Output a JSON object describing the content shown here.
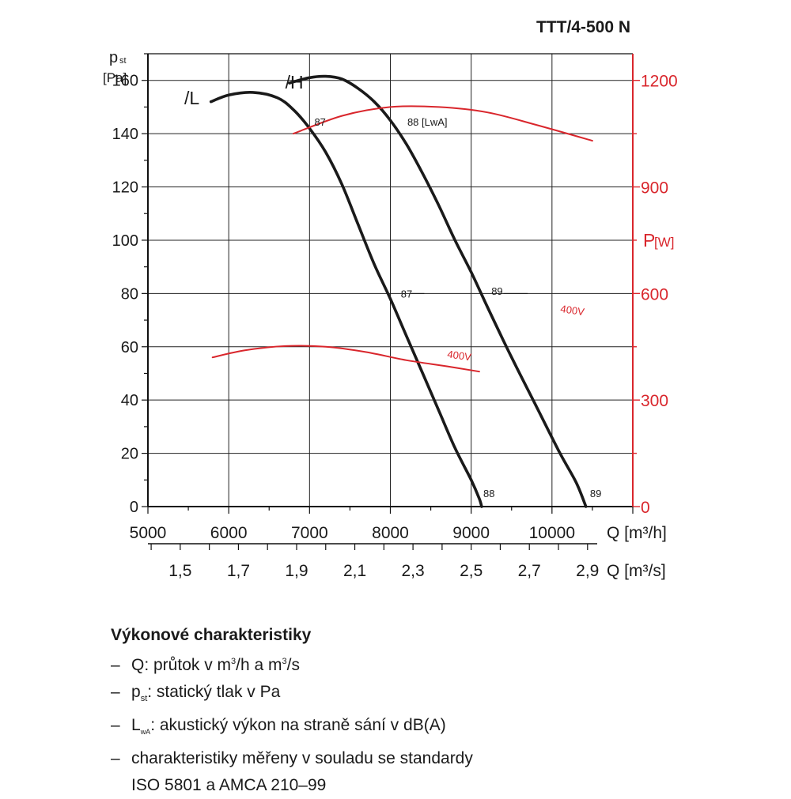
{
  "chart_data": {
    "type": "line",
    "title": "TTT/4-500 N",
    "y_left": {
      "label_main": "p",
      "label_sub": "st",
      "unit": "[Pa]",
      "range": [
        0,
        170
      ],
      "ticks": [
        0,
        20,
        40,
        60,
        80,
        100,
        120,
        140,
        160
      ]
    },
    "y_right": {
      "label_main": "P",
      "unit": "[W]",
      "range": [
        0,
        1275
      ],
      "ticks": [
        0,
        300,
        600,
        900,
        1200
      ],
      "color": "#d9262c"
    },
    "x_primary": {
      "unit_label": "Q [m³/h]",
      "range": [
        5000,
        11000
      ],
      "ticks": [
        5000,
        6000,
        7000,
        8000,
        9000,
        10000
      ]
    },
    "x_secondary": {
      "unit_label": "Q [m³/s]",
      "ticks": [
        "1,5",
        "1,7",
        "1,9",
        "2,1",
        "2,3",
        "2,5",
        "2,7",
        "2,9"
      ],
      "tick_values_m3s": [
        1.5,
        1.7,
        1.9,
        2.1,
        2.3,
        2.5,
        2.7,
        2.9
      ]
    },
    "grid": true,
    "series": [
      {
        "name": "/L",
        "axis": "left",
        "color": "#1a1a1a",
        "points": [
          [
            5780,
            152
          ],
          [
            6000,
            154.5
          ],
          [
            6300,
            155.5
          ],
          [
            6600,
            153.5
          ],
          [
            6800,
            149
          ],
          [
            7000,
            142
          ],
          [
            7200,
            133
          ],
          [
            7400,
            121
          ],
          [
            7600,
            106
          ],
          [
            7800,
            91
          ],
          [
            8000,
            78
          ],
          [
            8200,
            64
          ],
          [
            8400,
            50
          ],
          [
            8600,
            36
          ],
          [
            8800,
            22
          ],
          [
            9000,
            10
          ],
          [
            9100,
            3
          ],
          [
            9130,
            0
          ]
        ]
      },
      {
        "name": "/H",
        "axis": "left",
        "color": "#1a1a1a",
        "points": [
          [
            6750,
            159
          ],
          [
            7000,
            161
          ],
          [
            7200,
            161.5
          ],
          [
            7400,
            160.5
          ],
          [
            7600,
            157
          ],
          [
            7800,
            152
          ],
          [
            8000,
            145
          ],
          [
            8200,
            136
          ],
          [
            8400,
            125
          ],
          [
            8600,
            113
          ],
          [
            8800,
            100
          ],
          [
            9000,
            88
          ],
          [
            9200,
            75
          ],
          [
            9500,
            56
          ],
          [
            9800,
            38
          ],
          [
            10100,
            20
          ],
          [
            10300,
            9
          ],
          [
            10420,
            0
          ]
        ]
      },
      {
        "name": "400V",
        "axis": "right",
        "color": "#d9262c",
        "points": [
          [
            5800,
            420
          ],
          [
            6200,
            440
          ],
          [
            6700,
            452
          ],
          [
            7200,
            450
          ],
          [
            7700,
            435
          ],
          [
            8200,
            412
          ],
          [
            8700,
            395
          ],
          [
            9100,
            380
          ]
        ]
      },
      {
        "name": "400V",
        "axis": "right",
        "color": "#d9262c",
        "points": [
          [
            6800,
            1050
          ],
          [
            7400,
            1100
          ],
          [
            8000,
            1125
          ],
          [
            8600,
            1125
          ],
          [
            9200,
            1110
          ],
          [
            9800,
            1075
          ],
          [
            10500,
            1030
          ]
        ]
      }
    ],
    "annotations": [
      {
        "text": "/L",
        "x": 5450,
        "y": 151
      },
      {
        "text": "/H",
        "x": 6700,
        "y": 157
      },
      {
        "text": "87",
        "x": 7060,
        "y": 143
      },
      {
        "text": "88 [LwA]",
        "x": 8210,
        "y": 143
      },
      {
        "text": "87",
        "x": 8130,
        "y": 78.5
      },
      {
        "text": "89",
        "x": 9250,
        "y": 79.5
      },
      {
        "text": "88",
        "x": 9150,
        "y": 3.5
      },
      {
        "text": "89",
        "x": 10470,
        "y": 3.5
      },
      {
        "text": "400V",
        "x": 8700,
        "y": 56,
        "color": "#d9262c"
      },
      {
        "text": "400V",
        "x": 10100,
        "y": 73,
        "color": "#d9262c"
      }
    ]
  },
  "description": {
    "title": "Výkonové charakteristiky",
    "items": [
      {
        "prefix": "Q: průtok v m",
        "sup1": "3",
        "mid": "/h a m",
        "sup2": "3",
        "suffix": "/s"
      },
      {
        "prefix": "p",
        "sub": "st",
        "suffix": ": statický tlak v Pa"
      },
      {
        "prefix": "L",
        "sub": "wA",
        "suffix": ": akustický výkon na straně sání v dB(A)"
      },
      {
        "text": "charakteristiky měřeny v souladu se standardy"
      }
    ],
    "continuation": "ISO 5801 a AMCA 210–99"
  }
}
